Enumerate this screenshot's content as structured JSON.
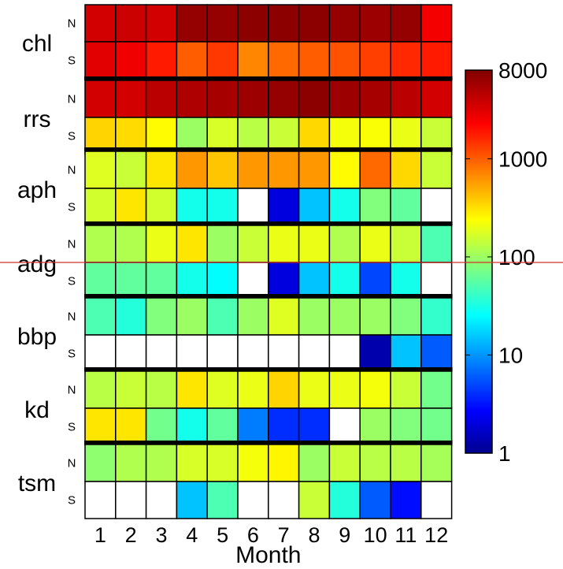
{
  "chart_data": {
    "type": "heatmap",
    "xlabel": "Month",
    "x_ticks": [
      "1",
      "2",
      "3",
      "4",
      "5",
      "6",
      "7",
      "8",
      "9",
      "10",
      "11",
      "12"
    ],
    "colorbar": {
      "scale": "log",
      "range": [
        1,
        8000
      ],
      "ticks": [
        {
          "value": 1,
          "label": "1"
        },
        {
          "value": 10,
          "label": "10"
        },
        {
          "value": 100,
          "label": "100"
        },
        {
          "value": 1000,
          "label": "1000"
        },
        {
          "value": 8000,
          "label": "8000"
        }
      ],
      "colormap": "jet"
    },
    "groups": [
      {
        "name": "chl",
        "rows": [
          {
            "label": "N",
            "values": [
              3500,
              3800,
              3500,
              6500,
              6500,
              7000,
              7000,
              7000,
              6500,
              6000,
              6500,
              2500
            ]
          },
          {
            "label": "S",
            "values": [
              3000,
              2600,
              1800,
              1000,
              1400,
              700,
              900,
              1000,
              1100,
              1300,
              1600,
              1800
            ]
          }
        ]
      },
      {
        "name": "rrs",
        "rows": [
          {
            "label": "N",
            "values": [
              3500,
              3500,
              4500,
              5000,
              5500,
              6000,
              6500,
              7000,
              6000,
              5500,
              4500,
              3500
            ]
          },
          {
            "label": "S",
            "values": [
              350,
              330,
              250,
              100,
              170,
              130,
              150,
              340,
              220,
              230,
              200,
              150
            ]
          }
        ]
      },
      {
        "name": "aph",
        "rows": [
          {
            "label": "N",
            "values": [
              180,
              150,
              300,
              600,
              400,
              600,
              600,
              600,
              250,
              900,
              340,
              150
            ]
          },
          {
            "label": "S",
            "values": [
              160,
              300,
              160,
              30,
              30,
              null,
              2,
              15,
              30,
              80,
              60,
              null
            ]
          }
        ]
      },
      {
        "name": "adg",
        "rows": [
          {
            "label": "N",
            "values": [
              120,
              120,
              200,
              300,
              100,
              150,
              200,
              200,
              120,
              200,
              150,
              50
            ]
          },
          {
            "label": "S",
            "values": [
              60,
              60,
              60,
              30,
              25,
              null,
              2,
              15,
              30,
              5,
              30,
              null
            ]
          }
        ]
      },
      {
        "name": "bbp",
        "rows": [
          {
            "label": "N",
            "values": [
              50,
              35,
              80,
              100,
              50,
              100,
              180,
              100,
              100,
              100,
              80,
              40
            ]
          },
          {
            "label": "S",
            "values": [
              null,
              null,
              null,
              null,
              null,
              null,
              null,
              null,
              null,
              1.3,
              15,
              6
            ]
          }
        ]
      },
      {
        "name": "kd",
        "rows": [
          {
            "label": "N",
            "values": [
              130,
              150,
              130,
              300,
              180,
              200,
              350,
              200,
              200,
              220,
              150,
              70
            ]
          },
          {
            "label": "S",
            "values": [
              300,
              300,
              70,
              30,
              60,
              8,
              4,
              4,
              null,
              100,
              80,
              70
            ]
          }
        ]
      },
      {
        "name": "tsm",
        "rows": [
          {
            "label": "N",
            "values": [
              90,
              120,
              120,
              170,
              170,
              220,
              260,
              100,
              150,
              130,
              130,
              110
            ]
          },
          {
            "label": "S",
            "values": [
              null,
              null,
              null,
              15,
              50,
              null,
              null,
              150,
              35,
              6,
              3,
              null
            ]
          }
        ]
      }
    ]
  }
}
